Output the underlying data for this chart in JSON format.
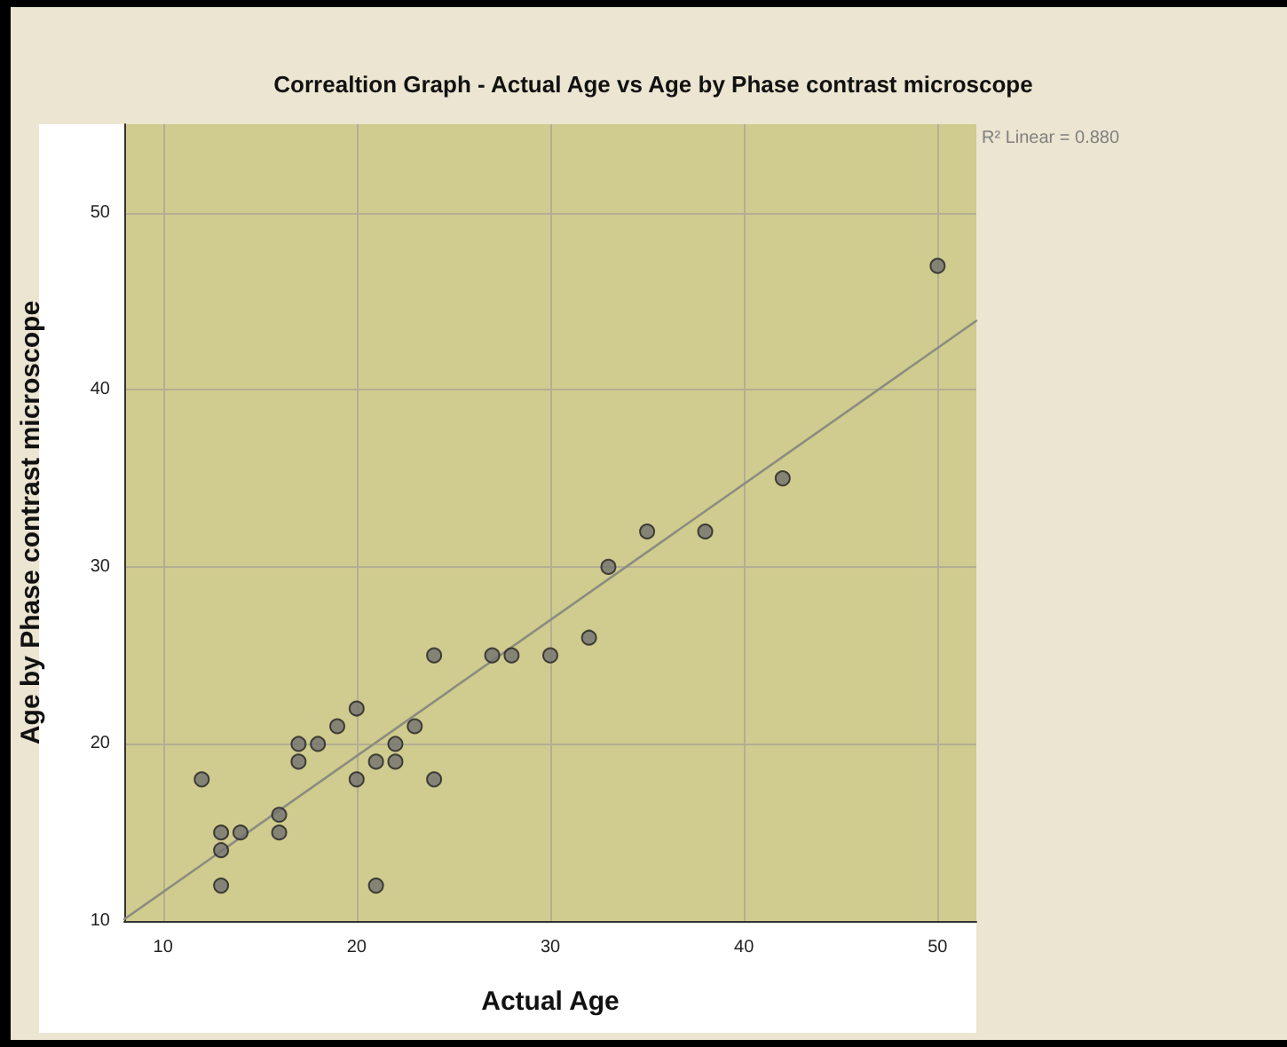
{
  "chart_data": {
    "type": "scatter",
    "title": "Correaltion Graph - Actual Age vs Age by Phase contrast microscope",
    "xlabel": "Actual Age",
    "ylabel": "Age by Phase contrast microscope",
    "annotations": [
      "R² Linear = 0.880"
    ],
    "xlim": [
      8,
      52
    ],
    "xticks": [
      10,
      20,
      30,
      40,
      50
    ],
    "ylim": [
      10,
      55
    ],
    "yticks": [
      10,
      20,
      30,
      40,
      50
    ],
    "grid": true,
    "marker": "circle",
    "series": [
      {
        "color": "#707070",
        "x": [
          12,
          13,
          13,
          13,
          14,
          16,
          16,
          17,
          17,
          18,
          19,
          20,
          20,
          21,
          21,
          22,
          22,
          23,
          24,
          24,
          27,
          28,
          30,
          32,
          33,
          35,
          38,
          42,
          50
        ],
        "values": [
          18,
          15,
          14,
          12,
          15,
          16,
          15,
          20,
          19,
          20,
          21,
          22,
          18,
          19,
          12,
          20,
          19,
          21,
          25,
          18,
          25,
          25,
          25,
          26,
          30,
          32,
          32,
          35,
          47
        ]
      },
      {
        "type": "line",
        "color": "#8c8c80",
        "x": [
          8,
          52
        ],
        "values": [
          10.1,
          43.9
        ],
        "marker": "none"
      }
    ]
  }
}
